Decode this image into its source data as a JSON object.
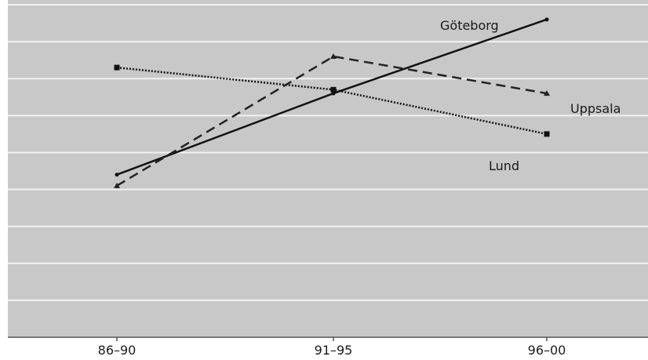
{
  "chart_data": {
    "type": "line",
    "title": "",
    "xlabel": "",
    "ylabel": "",
    "categories": [
      "86–90",
      "91–95",
      "96–00"
    ],
    "ylim": [
      0,
      9
    ],
    "grid": true,
    "legend": "labels at line ends",
    "y_gridlines": [
      1,
      2,
      3,
      4,
      5,
      6,
      7,
      8,
      9
    ],
    "series": [
      {
        "name": "Göteborg",
        "values": [
          4.4,
          6.6,
          8.6
        ],
        "line_style": "solid",
        "marker": "dot",
        "color": "#111111"
      },
      {
        "name": "Uppsala",
        "values": [
          4.1,
          7.6,
          6.6
        ],
        "line_style": "dashed",
        "marker": "triangle",
        "color": "#222222"
      },
      {
        "name": "Lund",
        "values": [
          7.3,
          6.7,
          5.5
        ],
        "line_style": "dotted",
        "marker": "square",
        "color": "#111111"
      }
    ],
    "colors": {
      "plot_background": "#c8c8c8",
      "gridline": "#f2f2f2",
      "axis": "#555555"
    }
  }
}
